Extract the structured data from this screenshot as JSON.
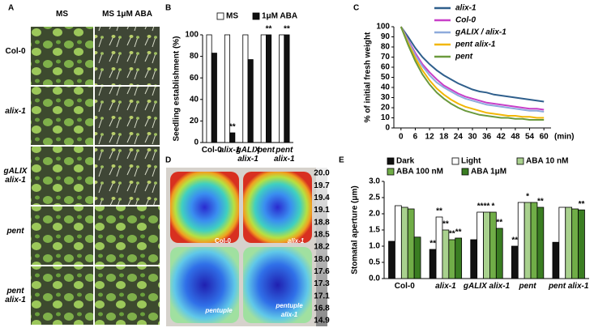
{
  "panels": {
    "A": {
      "label": "A",
      "columns": [
        "MS",
        "MS 1μM ABA"
      ],
      "rows": [
        "Col-0",
        "alix-1",
        "gALIX alix-1",
        "pent",
        "pent alix-1"
      ]
    },
    "D": {
      "label": "D",
      "plants": [
        "Col-0",
        "alix-1",
        "pentuple",
        "pentuple alix-1"
      ],
      "scale": [
        "20.0",
        "19.7",
        "19.4",
        "19.1",
        "18.8",
        "18.5",
        "18.2",
        "18.0",
        "17.6",
        "17.3",
        "17.1",
        "16.8",
        "14.9"
      ]
    }
  },
  "chart_data": [
    {
      "type": "bar",
      "panel": "B",
      "ylabel": "Seedling establishment (%)",
      "categories": [
        "Col-0",
        "alix-1",
        "gALIX alix-1",
        "pent",
        "pent alix-1"
      ],
      "series": [
        {
          "name": "MS",
          "color": "#ffffff",
          "values": [
            100,
            100,
            100,
            100,
            100
          ]
        },
        {
          "name": "1μM ABA",
          "color": "#111111",
          "values": [
            83,
            9,
            77,
            100,
            100
          ],
          "significance": [
            null,
            "**",
            null,
            "**",
            "**"
          ]
        }
      ],
      "ylim": [
        0,
        100
      ],
      "yticks": [
        0,
        20,
        40,
        60,
        80,
        100
      ],
      "legend": "top"
    },
    {
      "type": "line",
      "panel": "C",
      "ylabel": "% of initial fresh weight",
      "xlabel": "(min)",
      "x": [
        0,
        3,
        6,
        9,
        12,
        15,
        18,
        21,
        24,
        27,
        30,
        33,
        36,
        39,
        42,
        45,
        48,
        51,
        54,
        57,
        60
      ],
      "series": [
        {
          "name": "alix-1",
          "color": "#2f5f8c",
          "values": [
            100,
            90,
            79,
            70,
            63,
            57,
            52,
            48,
            44,
            41,
            38,
            36,
            35,
            33,
            32,
            31,
            30,
            29,
            28,
            27,
            26
          ]
        },
        {
          "name": "Col-0",
          "color": "#c83fc8",
          "values": [
            100,
            87,
            74,
            63,
            55,
            48,
            42,
            38,
            34,
            31,
            29,
            27,
            25,
            24,
            23,
            22,
            21,
            20,
            19,
            19,
            18
          ]
        },
        {
          "name": "gALIX / alix-1",
          "color": "#8eaadc",
          "values": [
            100,
            86,
            72,
            61,
            52,
            45,
            40,
            36,
            32,
            29,
            27,
            25,
            23,
            22,
            21,
            20,
            19,
            18,
            17,
            17,
            16
          ]
        },
        {
          "name": "pent alix-1",
          "color": "#f2b705",
          "values": [
            100,
            84,
            69,
            57,
            47,
            39,
            33,
            28,
            24,
            21,
            19,
            17,
            15,
            14,
            13,
            12,
            12,
            11,
            11,
            10,
            10
          ]
        },
        {
          "name": "pent",
          "color": "#6b9a3d",
          "values": [
            100,
            82,
            66,
            53,
            43,
            35,
            29,
            24,
            20,
            17,
            15,
            13,
            12,
            11,
            10,
            10,
            9,
            9,
            8,
            8,
            8
          ]
        }
      ],
      "xlim": [
        -3,
        63
      ],
      "xticks": [
        0,
        6,
        12,
        18,
        24,
        30,
        36,
        42,
        48,
        54,
        60
      ],
      "ylim": [
        0,
        100
      ],
      "yticks": [
        0,
        10,
        20,
        30,
        40,
        50,
        60,
        70,
        80,
        90,
        100
      ],
      "legend": "top-right"
    },
    {
      "type": "bar",
      "panel": "E",
      "ylabel": "Stomatal aperture (μm)",
      "categories": [
        "Col-0",
        "alix-1",
        "gALIX alix-1",
        "pent",
        "pent alix-1"
      ],
      "series": [
        {
          "name": "Dark",
          "color": "#111111",
          "values": [
            1.15,
            0.9,
            1.2,
            1.0,
            1.12
          ],
          "significance": [
            null,
            "**",
            null,
            "**",
            null
          ]
        },
        {
          "name": "Light",
          "color": "#ffffff",
          "values": [
            2.25,
            1.9,
            2.05,
            2.35,
            2.2
          ],
          "significance": [
            null,
            "**",
            "**",
            null,
            null
          ]
        },
        {
          "name": "ABA 10 nM",
          "color": "#a9d18e",
          "values": [
            2.2,
            1.5,
            2.05,
            2.35,
            2.2
          ],
          "significance": [
            null,
            "**",
            "**",
            "*",
            null
          ]
        },
        {
          "name": "ABA 100 nM",
          "color": "#70ad47",
          "values": [
            2.15,
            1.2,
            2.05,
            2.35,
            2.15
          ],
          "significance": [
            null,
            "**",
            "*",
            null,
            null
          ]
        },
        {
          "name": "ABA 1μM",
          "color": "#3a7d22",
          "values": [
            1.28,
            1.25,
            1.55,
            2.2,
            2.12
          ],
          "significance": [
            null,
            "**",
            "**",
            "**",
            "**"
          ]
        }
      ],
      "ylim": [
        0,
        3.0
      ],
      "yticks": [
        {
          "value": 0,
          "label": "0.0"
        },
        0.5,
        {
          "value": 1,
          "label": "1.0"
        },
        1.5,
        {
          "value": 2,
          "label": "2.0"
        },
        2.5,
        {
          "value": 3,
          "label": "3.0"
        }
      ],
      "legend": "top"
    }
  ]
}
